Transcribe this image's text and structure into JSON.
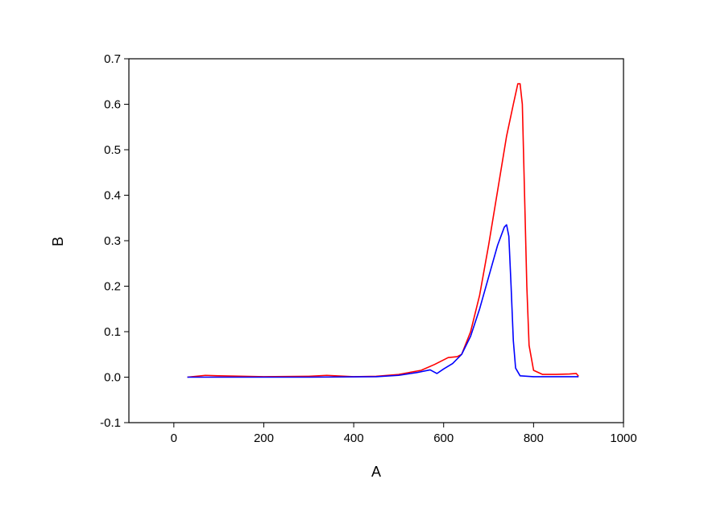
{
  "chart_data": {
    "type": "line",
    "x_label": "A",
    "y_label": "B",
    "xlim": [
      -100,
      1000
    ],
    "ylim": [
      -0.1,
      0.7
    ],
    "xticks": [
      0,
      200,
      400,
      600,
      800,
      1000
    ],
    "yticks": [
      -0.1,
      {
        "value": 0,
        "label": "0.0"
      },
      0.1,
      0.2,
      0.3,
      0.4,
      0.5,
      0.6,
      0.7
    ],
    "series": [
      {
        "color": "#ff0000",
        "x": [
          30,
          70,
          100,
          200,
          300,
          340,
          400,
          450,
          500,
          550,
          580,
          610,
          630,
          640,
          660,
          680,
          700,
          720,
          740,
          755,
          765,
          770,
          775,
          780,
          785,
          790,
          800,
          820,
          850,
          880,
          895,
          900
        ],
        "values": [
          0,
          0.004,
          0.003,
          0.001,
          0.002,
          0.004,
          0.001,
          0.002,
          0.006,
          0.015,
          0.028,
          0.043,
          0.045,
          0.05,
          0.1,
          0.18,
          0.29,
          0.41,
          0.53,
          0.6,
          0.645,
          0.645,
          0.6,
          0.4,
          0.2,
          0.07,
          0.015,
          0.006,
          0.006,
          0.007,
          0.008,
          0.002
        ]
      },
      {
        "color": "#0000ff",
        "x": [
          30,
          100,
          300,
          450,
          500,
          540,
          570,
          585,
          600,
          620,
          640,
          660,
          680,
          700,
          720,
          735,
          740,
          745,
          750,
          755,
          760,
          770,
          800,
          900
        ],
        "values": [
          0,
          0,
          0,
          0.001,
          0.004,
          0.01,
          0.016,
          0.008,
          0.018,
          0.03,
          0.05,
          0.09,
          0.15,
          0.22,
          0.29,
          0.33,
          0.335,
          0.31,
          0.2,
          0.08,
          0.02,
          0.003,
          0.001,
          0.001
        ]
      }
    ]
  }
}
